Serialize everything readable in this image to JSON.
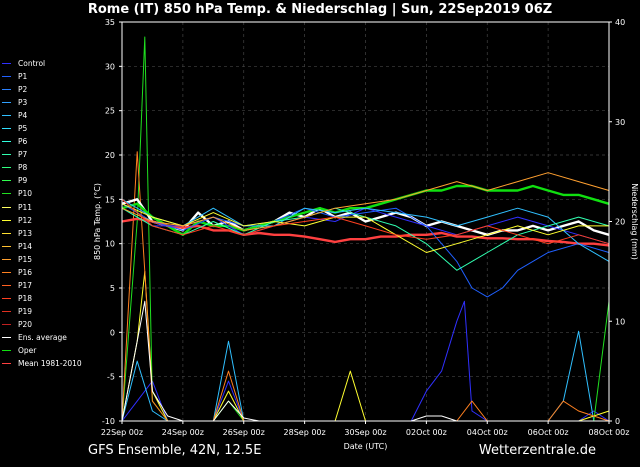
{
  "title": "Rome  (IT)  850 hPa Temp. & Niederschlag | Sun, 22Sep2019 06Z",
  "footer_left": "GFS Ensemble, 42N, 12.5E",
  "footer_right": "Wetterzentrale.de",
  "chart_data": {
    "type": "line",
    "xlabel": "Date (UTC)",
    "ylabel": "850 hPa Temp. (°C)",
    "y2label": "Niederschlag (mm)",
    "ylim": [
      -10,
      35
    ],
    "y2lim": [
      0,
      40
    ],
    "xlim_days": [
      0,
      16
    ],
    "yticks": [
      -10,
      -5,
      0,
      5,
      10,
      15,
      20,
      25,
      30,
      35
    ],
    "y2ticks": [
      0,
      10,
      20,
      30,
      40
    ],
    "xticks": [
      "22Sep 00z",
      "24Sep 00z",
      "26Sep 00z",
      "28Sep 00z",
      "30Sep 00z",
      "02Oct 00z",
      "04Oct 00z",
      "06Oct 00z",
      "08Oct 00z"
    ],
    "grid": true,
    "legend_position": "left",
    "legend": [
      {
        "name": "Control",
        "color": "#3030ff"
      },
      {
        "name": "P1",
        "color": "#2060ff"
      },
      {
        "name": "P2",
        "color": "#2a80ff"
      },
      {
        "name": "P3",
        "color": "#30a0ff"
      },
      {
        "name": "P4",
        "color": "#30c0ff"
      },
      {
        "name": "P5",
        "color": "#30e0ff"
      },
      {
        "name": "P6",
        "color": "#30ffe0"
      },
      {
        "name": "P7",
        "color": "#30ffb0"
      },
      {
        "name": "P8",
        "color": "#30ff80"
      },
      {
        "name": "P9",
        "color": "#30ff50"
      },
      {
        "name": "P10",
        "color": "#20e020"
      },
      {
        "name": "P11",
        "color": "#ffff60"
      },
      {
        "name": "P12",
        "color": "#ffff30"
      },
      {
        "name": "P13",
        "color": "#ffe030"
      },
      {
        "name": "P14",
        "color": "#ffc030"
      },
      {
        "name": "P15",
        "color": "#ffa030"
      },
      {
        "name": "P16",
        "color": "#ff8020"
      },
      {
        "name": "P17",
        "color": "#ff6020"
      },
      {
        "name": "P18",
        "color": "#ff4020"
      },
      {
        "name": "P19",
        "color": "#e03020"
      },
      {
        "name": "P20",
        "color": "#c02020"
      },
      {
        "name": "Ens. average",
        "color": "#ffffff"
      },
      {
        "name": "Oper",
        "color": "#10e010"
      },
      {
        "name": "Mean 1981-2010",
        "color": "#ff4040"
      }
    ],
    "temperature_series": [
      {
        "name": "Ens. average",
        "color": "#ffffff",
        "x": [
          0,
          0.5,
          1,
          1.5,
          2,
          2.5,
          3,
          3.5,
          4,
          4.5,
          5,
          5.5,
          6,
          6.5,
          7,
          7.5,
          8,
          8.5,
          9,
          9.5,
          10,
          10.5,
          11,
          11.5,
          12,
          12.5,
          13,
          13.5,
          14,
          14.5,
          15,
          15.5,
          16
        ],
        "y": [
          14.5,
          15,
          12.5,
          12,
          11.5,
          13.5,
          12,
          12.5,
          11.5,
          12,
          12.5,
          13.5,
          13,
          14,
          13,
          13.5,
          12.5,
          13,
          13.5,
          13,
          12,
          12.5,
          12,
          11.5,
          11,
          11.5,
          11.5,
          12,
          11.5,
          12,
          12.5,
          11.5,
          11
        ]
      },
      {
        "name": "Oper",
        "color": "#10e010",
        "x": [
          0,
          0.5,
          1,
          1.5,
          2,
          2.5,
          3,
          3.5,
          4,
          4.5,
          5,
          5.5,
          6,
          6.5,
          7,
          7.5,
          8,
          8.5,
          9,
          9.5,
          10,
          10.5,
          11,
          11.5,
          12,
          12.5,
          13,
          13.5,
          14,
          14.5,
          15,
          15.5,
          16
        ],
        "y": [
          14,
          14.5,
          13,
          12,
          11,
          12.5,
          12,
          12,
          11.5,
          12,
          12.5,
          13,
          13.5,
          14,
          13.5,
          14,
          14,
          14.5,
          15,
          15.5,
          16,
          16,
          16.5,
          16.5,
          16,
          16,
          16,
          16.5,
          16,
          15.5,
          15.5,
          15,
          14.5
        ]
      },
      {
        "name": "Mean 1981-2010",
        "color": "#ff4040",
        "x": [
          0,
          0.5,
          1,
          1.5,
          2,
          2.5,
          3,
          3.5,
          4,
          4.5,
          5,
          5.5,
          6,
          6.5,
          7,
          7.5,
          8,
          8.5,
          9,
          9.5,
          10,
          10.5,
          11,
          11.5,
          12,
          12.5,
          13,
          13.5,
          14,
          14.5,
          15,
          15.5,
          16
        ],
        "y": [
          12.5,
          12.8,
          12.5,
          12,
          11.8,
          12,
          11.5,
          11.5,
          11,
          11.2,
          11,
          11,
          10.8,
          10.5,
          10.2,
          10.5,
          10.5,
          10.8,
          10.8,
          11,
          11,
          11.2,
          10.8,
          10.8,
          10.6,
          10.6,
          10.5,
          10.5,
          10.3,
          10.2,
          10,
          10,
          9.8
        ]
      },
      {
        "name": "Control",
        "color": "#3030ff",
        "x": [
          0,
          1,
          2,
          3,
          4,
          5,
          6,
          7,
          8,
          9,
          10,
          11,
          12,
          13,
          14,
          15,
          16
        ],
        "y": [
          15,
          12,
          12,
          13,
          11,
          12,
          13,
          12.5,
          14,
          13,
          12,
          11,
          12,
          13,
          12,
          11,
          10
        ]
      },
      {
        "name": "P1",
        "color": "#2060ff",
        "x": [
          0,
          1,
          2,
          3,
          4,
          5,
          6,
          7,
          8,
          9,
          10,
          11,
          11.5,
          12,
          12.5,
          13,
          14,
          15,
          16
        ],
        "y": [
          14.5,
          12.5,
          11.5,
          13,
          12,
          12.5,
          14,
          13,
          13.5,
          14,
          12,
          8,
          5,
          4,
          5,
          7,
          9,
          10,
          9
        ]
      },
      {
        "name": "P4",
        "color": "#30c0ff",
        "x": [
          0,
          1,
          2,
          3,
          4,
          5,
          6,
          7,
          8,
          9,
          10,
          11,
          12,
          13,
          14,
          15,
          16
        ],
        "y": [
          15,
          13,
          12,
          14,
          12,
          12,
          14,
          13.5,
          14,
          13.5,
          13,
          12,
          13,
          14,
          13,
          10,
          8
        ]
      },
      {
        "name": "P7",
        "color": "#30ffb0",
        "x": [
          0,
          1,
          2,
          3,
          4,
          5,
          6,
          7,
          8,
          9,
          10,
          11,
          12,
          13,
          14,
          15,
          16
        ],
        "y": [
          14,
          12,
          11,
          12.5,
          11,
          12.5,
          13,
          14,
          13,
          12,
          10,
          7,
          9,
          11,
          12,
          13,
          12
        ]
      },
      {
        "name": "P12",
        "color": "#ffff30",
        "x": [
          0,
          1,
          2,
          3,
          4,
          5,
          6,
          7,
          8,
          9,
          10,
          11,
          12,
          13,
          14,
          15,
          16
        ],
        "y": [
          14.5,
          13,
          12,
          13.5,
          12,
          12.5,
          12,
          13,
          13,
          11,
          9,
          10,
          11,
          12,
          11,
          12,
          12
        ]
      },
      {
        "name": "P15",
        "color": "#ffa030",
        "x": [
          0,
          1,
          2,
          3,
          4,
          5,
          6,
          7,
          8,
          9,
          10,
          11,
          12,
          13,
          14,
          15,
          16
        ],
        "y": [
          14,
          12.5,
          12,
          13,
          11.5,
          12,
          13,
          14,
          14.5,
          15,
          16,
          17,
          16,
          17,
          18,
          17,
          16
        ]
      },
      {
        "name": "P18",
        "color": "#ff4020",
        "x": [
          0,
          1,
          2,
          3,
          4,
          5,
          6,
          7,
          8,
          9,
          10,
          11,
          12,
          13,
          14,
          15,
          16
        ],
        "y": [
          15,
          12,
          11,
          12,
          11,
          12,
          12.5,
          13,
          12,
          11,
          10.5,
          11,
          12,
          11,
          10,
          11,
          10
        ]
      }
    ],
    "precipitation_series": [
      {
        "name": "Control",
        "color": "#3030ff",
        "x": [
          0,
          0.5,
          1,
          1.5,
          2,
          3,
          3.5,
          4,
          4.5,
          9.5,
          10,
          10.5,
          11,
          11.25,
          11.5,
          12,
          13,
          14,
          15,
          15.5,
          16
        ],
        "y": [
          0,
          2,
          4,
          0,
          0,
          0,
          4,
          0,
          0,
          0,
          3,
          5,
          10,
          12,
          1,
          0,
          0,
          0,
          0,
          1,
          0
        ]
      },
      {
        "name": "P4",
        "color": "#30c0ff",
        "x": [
          0,
          0.5,
          1,
          1.5,
          3,
          3.5,
          4,
          12,
          14,
          14.5,
          15,
          15.5,
          16
        ],
        "y": [
          0,
          6,
          1,
          0,
          0,
          8,
          0,
          0,
          0,
          2,
          9,
          0,
          0
        ]
      },
      {
        "name": "P10",
        "color": "#20e020",
        "x": [
          0,
          0.5,
          0.75,
          1,
          1.5,
          3,
          3.5,
          4,
          15.5,
          16
        ],
        "y": [
          0,
          20,
          38.5,
          2,
          0,
          0,
          2,
          0,
          0,
          12
        ]
      },
      {
        "name": "P12",
        "color": "#ffff30",
        "x": [
          0,
          0.5,
          0.75,
          1,
          1.5,
          3,
          3.5,
          4,
          7,
          7.5,
          8,
          15,
          16
        ],
        "y": [
          0,
          8,
          15,
          3,
          0,
          0,
          3,
          0,
          0,
          5,
          0,
          0,
          1
        ]
      },
      {
        "name": "P16",
        "color": "#ff8020",
        "x": [
          0,
          0.5,
          0.75,
          1,
          1.5,
          3,
          3.5,
          4,
          11,
          11.5,
          12,
          14,
          14.5,
          15,
          16
        ],
        "y": [
          0,
          27,
          15,
          2,
          0,
          0,
          5,
          0,
          0,
          2,
          0,
          0,
          2,
          1,
          0
        ]
      },
      {
        "name": "Ens. average",
        "color": "#ffffff",
        "x": [
          0,
          0.5,
          0.75,
          1,
          1.5,
          2,
          3,
          3.5,
          4,
          4.5,
          9.5,
          10,
          10.5,
          11,
          16
        ],
        "y": [
          0,
          8,
          12,
          3,
          0.5,
          0,
          0,
          2,
          0.3,
          0,
          0,
          0.5,
          0.5,
          0,
          0
        ]
      }
    ]
  }
}
